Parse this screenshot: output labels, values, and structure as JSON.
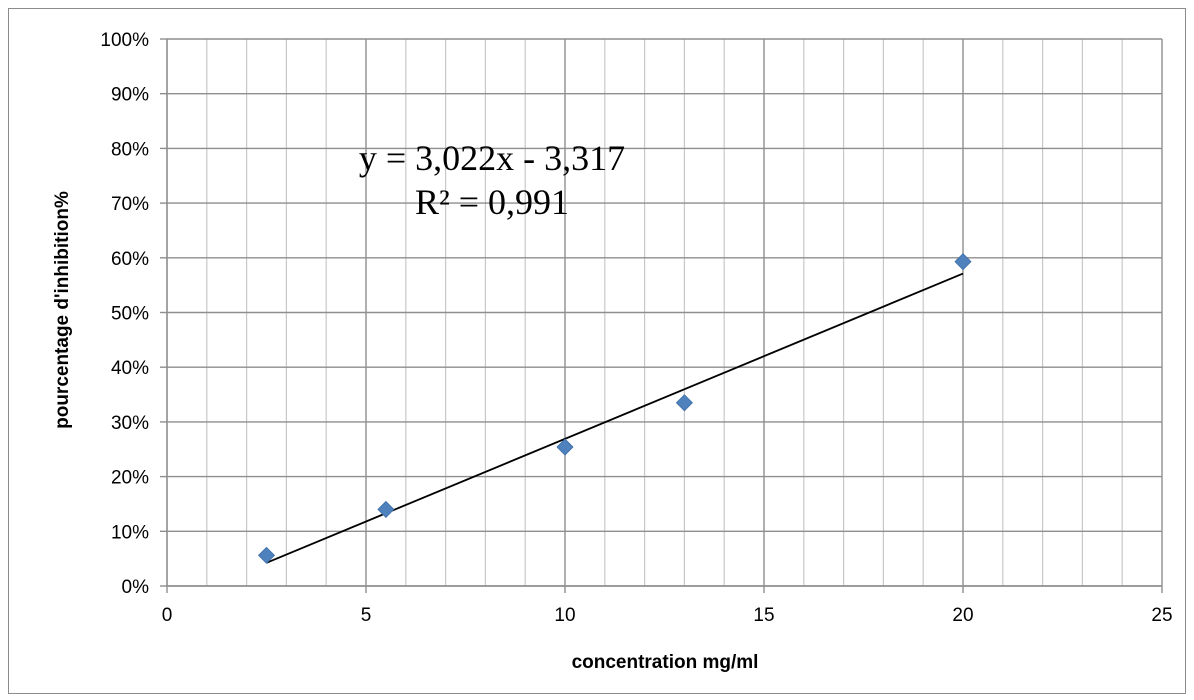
{
  "chart_data": {
    "type": "scatter",
    "xlabel": "concentration mg/ml",
    "ylabel": "pourcentage d'inhibition%",
    "xlim": [
      0,
      25
    ],
    "ylim": [
      0,
      100
    ],
    "x_ticks": [
      "0",
      "5",
      "10",
      "15",
      "20",
      "25"
    ],
    "y_ticks": [
      "0%",
      "10%",
      "20%",
      "30%",
      "40%",
      "50%",
      "60%",
      "70%",
      "80%",
      "90%",
      "100%"
    ],
    "x_major_step": 5,
    "x_minor_step": 1,
    "y_major_step": 10,
    "grid": true,
    "legend": "none",
    "series": [
      {
        "marker": "diamond",
        "color": "#4f81bd",
        "points": [
          {
            "x": 2.5,
            "y": 5.6
          },
          {
            "x": 5.5,
            "y": 14.0
          },
          {
            "x": 10,
            "y": 25.4
          },
          {
            "x": 13,
            "y": 33.5
          },
          {
            "x": 20,
            "y": 59.3
          }
        ]
      }
    ],
    "trendline": {
      "type": "linear",
      "color": "#000000",
      "x_range": [
        2.5,
        20
      ],
      "slope": 3.022,
      "intercept": -3.317
    },
    "annotations": {
      "equation": "y = 3,022x - 3,317",
      "r_squared": "R² = 0,991"
    }
  }
}
